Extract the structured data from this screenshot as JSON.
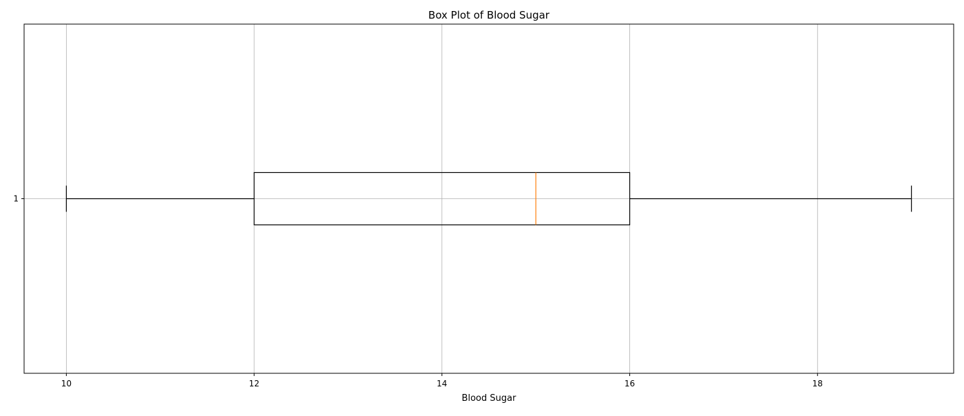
{
  "chart_data": {
    "type": "box",
    "orientation": "horizontal",
    "title": "Box Plot of Blood Sugar",
    "xlabel": "Blood Sugar",
    "ylabel": "",
    "xlim": [
      9.55,
      19.45
    ],
    "xticks": [
      10,
      12,
      14,
      16,
      18
    ],
    "ycategories": [
      "1"
    ],
    "grid": true,
    "boxes": [
      {
        "category": "1",
        "whisker_low": 10,
        "q1": 12,
        "median": 15,
        "q3": 16,
        "whisker_high": 19
      }
    ],
    "colors": {
      "box": "#000000",
      "median": "#ff7f0e",
      "grid": "#b0b0b0"
    }
  }
}
